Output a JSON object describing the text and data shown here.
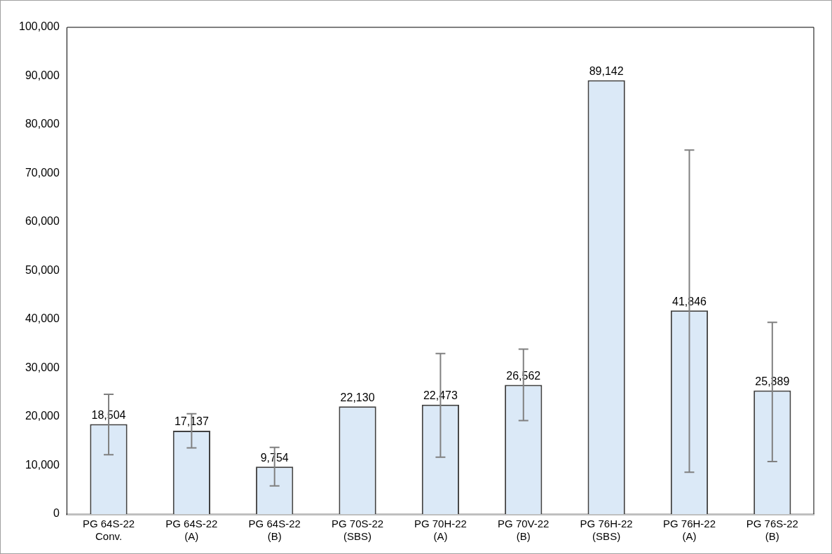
{
  "chart_data": {
    "type": "bar",
    "categories": [
      "PG 64S-22\nConv.",
      "PG 64S-22\n(A)",
      "PG 64S-22\n(B)",
      "PG 70S-22\n(SBS)",
      "PG 70H-22\n(A)",
      "PG 70V-22\n(B)",
      "PG 76H-22\n(SBS)",
      "PG 76H-22\n(A)",
      "PG 76S-22\n(B)"
    ],
    "values": [
      18504,
      17137,
      9754,
      22130,
      22473,
      26562,
      89142,
      41846,
      25389
    ],
    "errors": [
      [
        12200,
        24600
      ],
      [
        13600,
        20600
      ],
      [
        5800,
        13700
      ],
      null,
      [
        11700,
        33000
      ],
      [
        19200,
        33900
      ],
      null,
      [
        8600,
        74800
      ],
      [
        10800,
        39400
      ]
    ],
    "color": "#dbe9f7",
    "value_labels": [
      "18,504",
      "17,137",
      "9,754",
      "22,130",
      "22,473",
      "26,562",
      "89,142",
      "41,846",
      "25,389"
    ],
    "ylim": [
      0,
      100000
    ],
    "yticks": [
      0,
      {
        "value": 10000,
        "label": "10,000"
      },
      {
        "value": 20000,
        "label": "20,000"
      },
      {
        "value": 30000,
        "label": "30,000"
      },
      {
        "value": 40000,
        "label": "40,000"
      },
      {
        "value": 50000,
        "label": "50,000"
      },
      {
        "value": 60000,
        "label": "60,000"
      },
      {
        "value": 70000,
        "label": "70,000"
      },
      {
        "value": 80000,
        "label": "80,000"
      },
      {
        "value": 90000,
        "label": "90,000"
      },
      {
        "value": 100000,
        "label": "100,000"
      }
    ],
    "grid": false,
    "legend": false
  }
}
